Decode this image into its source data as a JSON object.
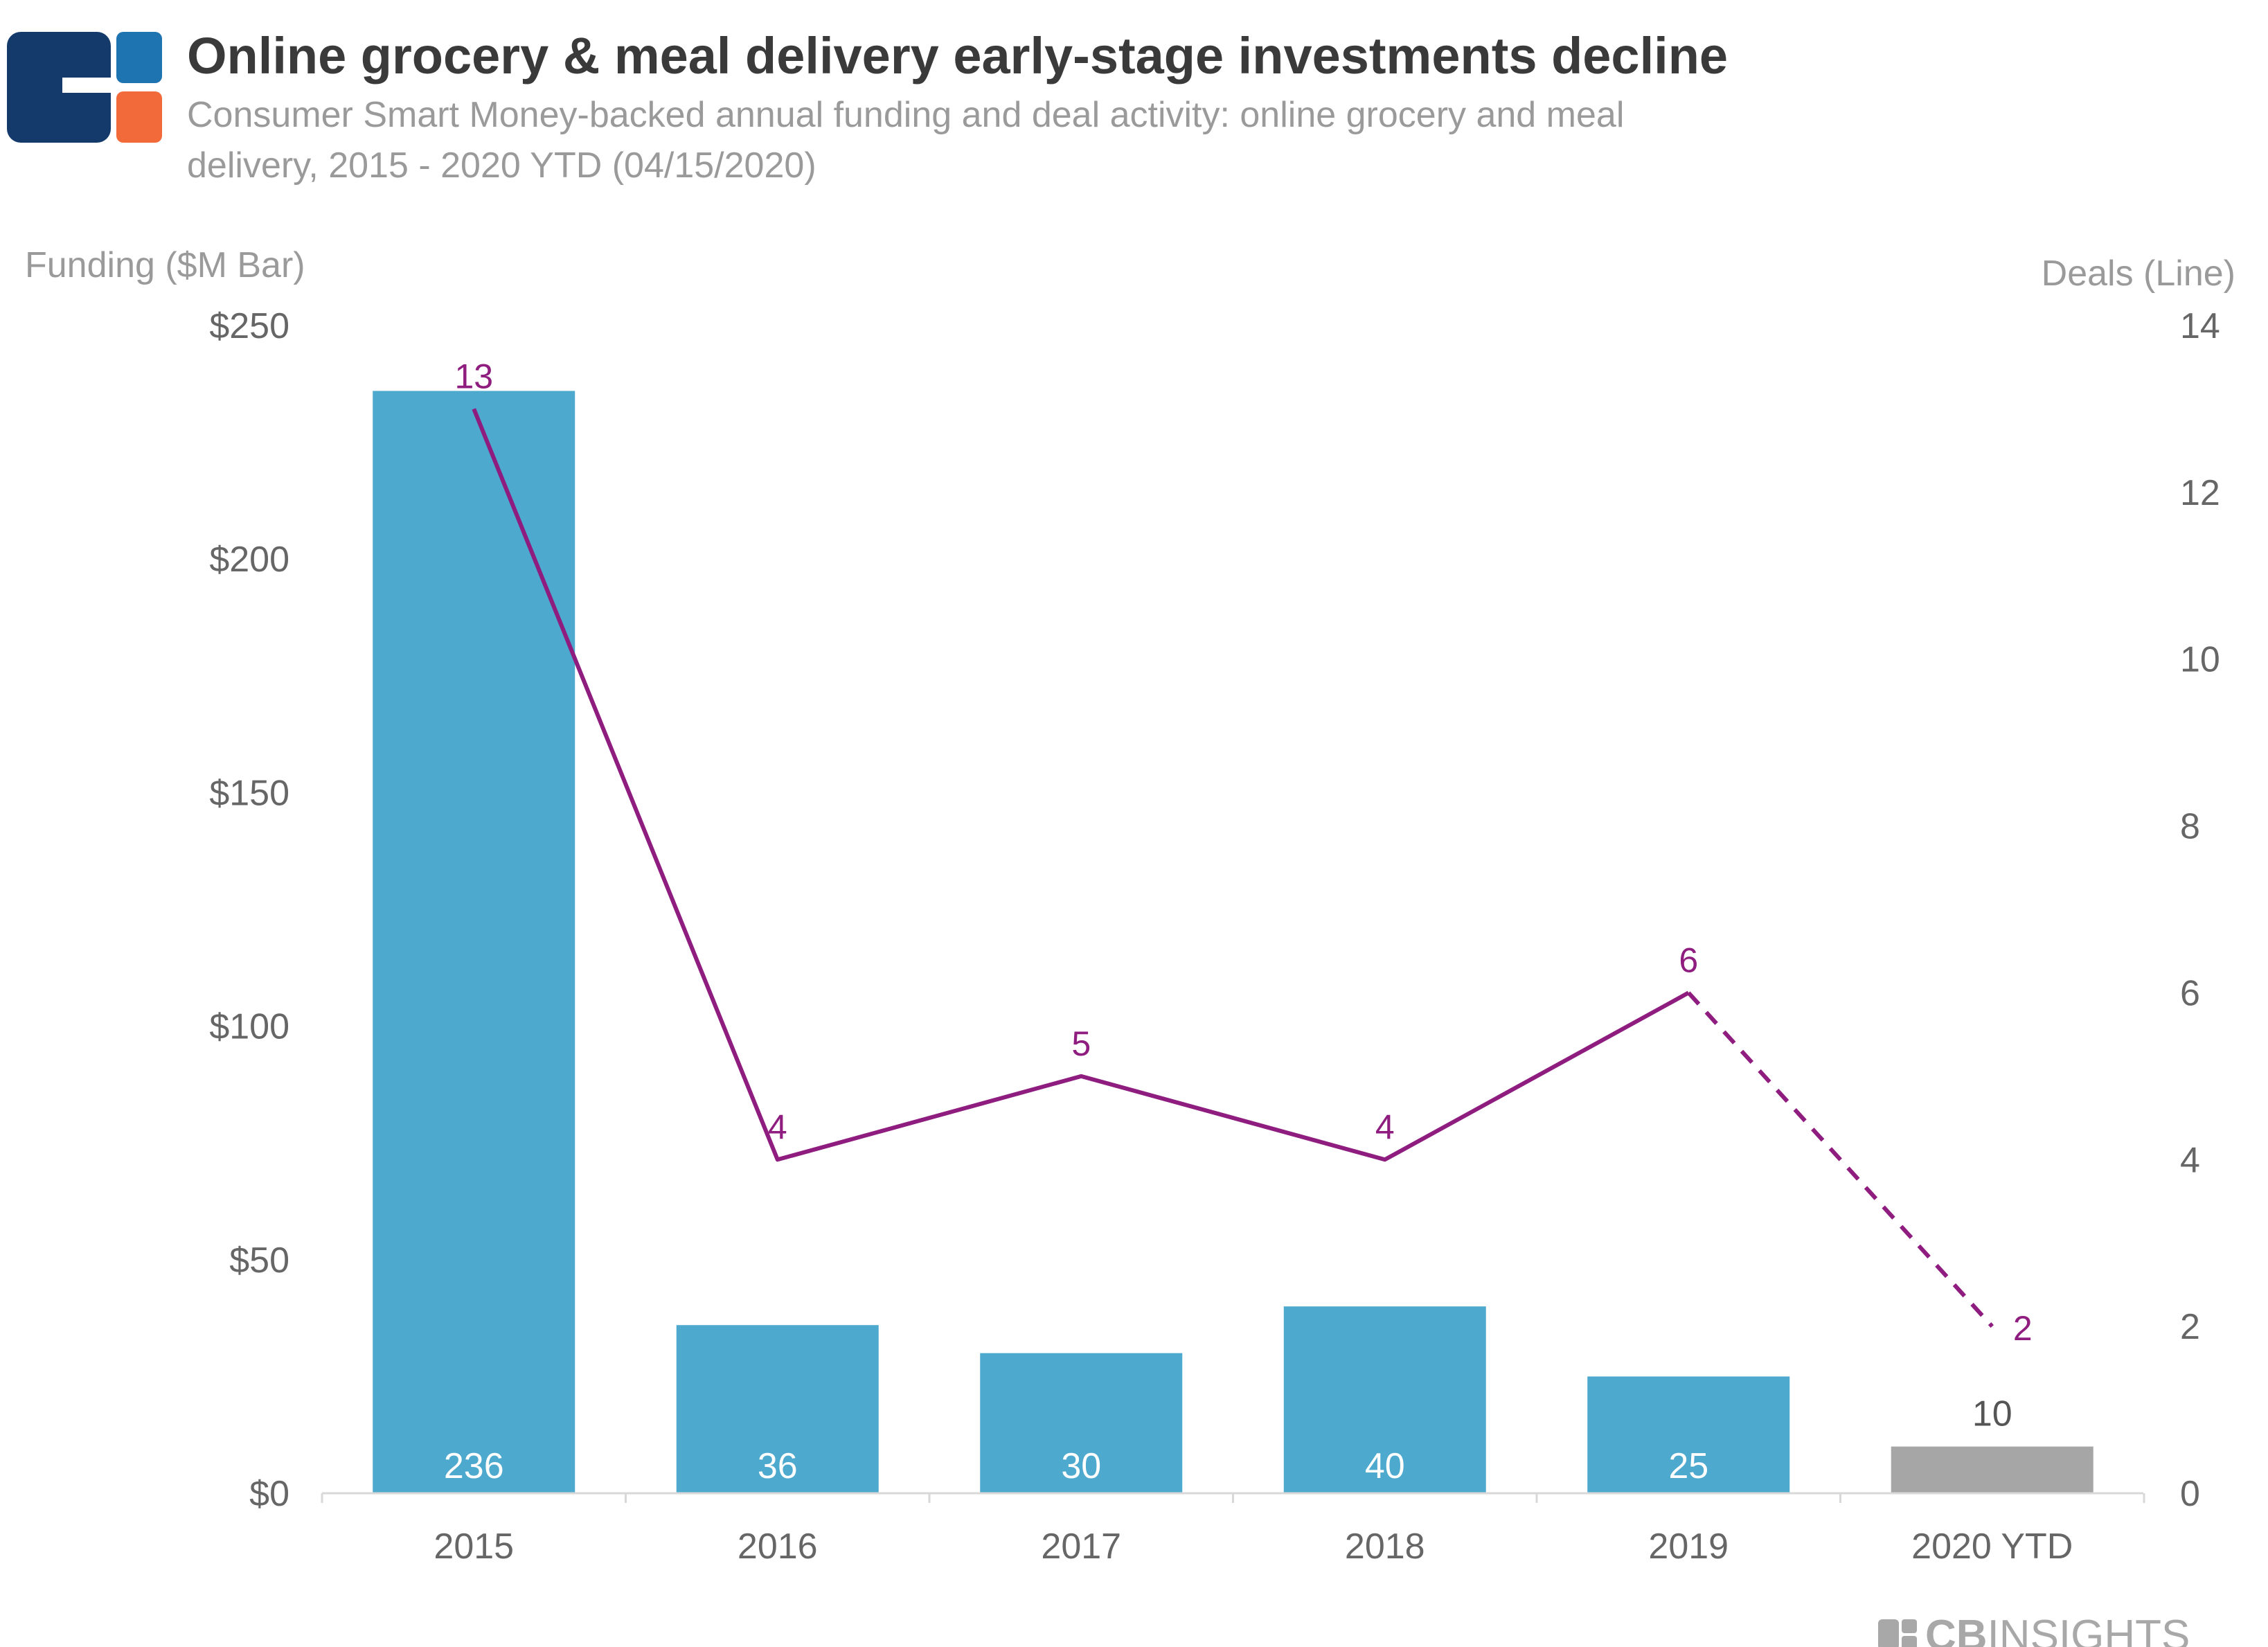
{
  "header": {
    "title": "Online grocery & meal delivery early-stage investments decline",
    "subtitle_line1": "Consumer Smart Money-backed annual funding and deal activity: online grocery and meal",
    "subtitle_line2": "delivery, 2015 - 2020 YTD (04/15/2020)"
  },
  "brand": {
    "name_bold": "CB",
    "name_light": "INSIGHTS"
  },
  "colors": {
    "bar": "#4ea9cf",
    "bar_ytd": "#a6a6a6",
    "line": "#8e1d7f",
    "logo_navy": "#143a6b",
    "logo_blue": "#1e73b1",
    "logo_orange": "#f26a3a"
  },
  "chart_data": {
    "type": "bar",
    "title": "Online grocery & meal delivery early-stage investments decline",
    "categories": [
      "2015",
      "2016",
      "2017",
      "2018",
      "2019",
      "2020 YTD"
    ],
    "series": [
      {
        "name": "Funding ($M)",
        "type": "bar",
        "axis": "left",
        "values": [
          236,
          36,
          30,
          40,
          25,
          10
        ],
        "labels": [
          "236",
          "36",
          "30",
          "40",
          "25",
          "10"
        ],
        "highlight_last": true
      },
      {
        "name": "Deals",
        "type": "line",
        "axis": "right",
        "values": [
          13,
          4,
          5,
          4,
          6,
          2
        ],
        "labels": [
          "13",
          "4",
          "5",
          "4",
          "6",
          "2"
        ],
        "dashed_last_segment": true
      }
    ],
    "left_axis": {
      "title": "Funding ($M Bar)",
      "min": 0,
      "max": 250,
      "ticks": [
        0,
        50,
        100,
        150,
        200,
        250
      ],
      "tick_labels": [
        "$0",
        "$50",
        "$100",
        "$150",
        "$200",
        "$250"
      ]
    },
    "right_axis": {
      "title": "Deals (Line)",
      "min": 0,
      "max": 14,
      "ticks": [
        0,
        2,
        4,
        6,
        8,
        10,
        12,
        14
      ],
      "tick_labels": [
        "0",
        "2",
        "4",
        "6",
        "8",
        "10",
        "12",
        "14"
      ]
    },
    "grid": false,
    "legend": "none"
  }
}
